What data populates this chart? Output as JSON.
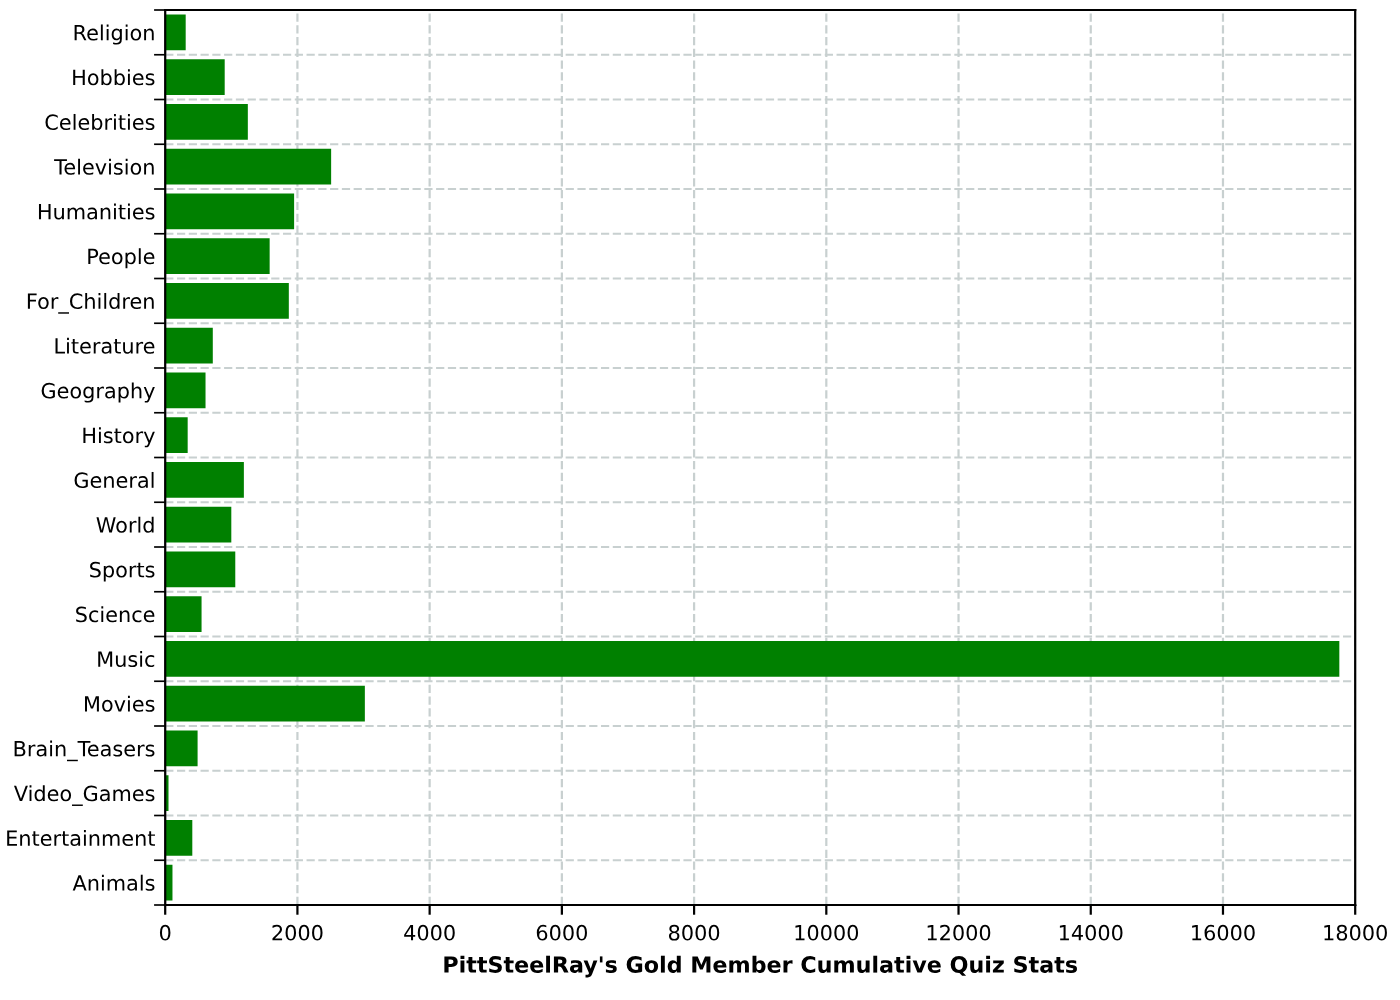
{
  "chart_data": {
    "type": "bar",
    "orientation": "horizontal",
    "xlabel": "PittSteelRay's Gold Member Cumulative Quiz Stats",
    "categories": [
      "Religion",
      "Hobbies",
      "Celebrities",
      "Television",
      "Humanities",
      "People",
      "For_Children",
      "Literature",
      "Geography",
      "History",
      "General",
      "World",
      "Sports",
      "Science",
      "Music",
      "Movies",
      "Brain_Teasers",
      "Video_Games",
      "Entertainment",
      "Animals"
    ],
    "values": [
      310,
      900,
      1250,
      2510,
      1950,
      1580,
      1870,
      720,
      610,
      340,
      1190,
      1000,
      1060,
      550,
      17760,
      3020,
      490,
      50,
      410,
      110
    ],
    "color": "#008000",
    "xlim": [
      0,
      18000
    ],
    "xticks": [
      0,
      2000,
      4000,
      6000,
      8000,
      10000,
      12000,
      14000,
      16000,
      18000
    ],
    "grid": true
  }
}
